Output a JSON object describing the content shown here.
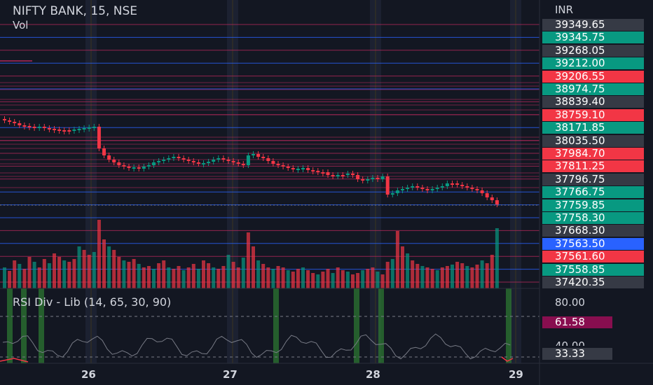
{
  "header": {
    "symbol": "NIFTY BANK, 15, NSE",
    "volume_label": "Vol",
    "rsi_label": "RSI Div - Lib (14, 65, 30, 90)"
  },
  "price_axis": {
    "currency": "INR",
    "levels": [
      {
        "value": "39349.65",
        "color": "#363a45"
      },
      {
        "value": "39345.75",
        "color": "#089981"
      },
      {
        "value": "39268.05",
        "color": "#363a45"
      },
      {
        "value": "39212.00",
        "color": "#089981"
      },
      {
        "value": "39206.55",
        "color": "#f23645"
      },
      {
        "value": "38974.75",
        "color": "#089981"
      },
      {
        "value": "38839.40",
        "color": "#363a45"
      },
      {
        "value": "38759.10",
        "color": "#f23645"
      },
      {
        "value": "38171.85",
        "color": "#089981"
      },
      {
        "value": "38035.50",
        "color": "#363a45"
      },
      {
        "value": "37984.70",
        "color": "#f23645"
      },
      {
        "value": "37811.25",
        "color": "#f23645"
      },
      {
        "value": "37796.75",
        "color": "#363a45"
      },
      {
        "value": "37766.75",
        "color": "#089981"
      },
      {
        "value": "37759.85",
        "color": "#089981"
      },
      {
        "value": "37758.30",
        "color": "#089981"
      },
      {
        "value": "37668.30",
        "color": "#363a45"
      },
      {
        "value": "37563.50",
        "color": "#2962ff"
      },
      {
        "value": "37561.60",
        "color": "#f23645"
      },
      {
        "value": "37558.85",
        "color": "#089981"
      },
      {
        "value": "37420.35",
        "color": "#363a45"
      }
    ]
  },
  "rsi_axis": {
    "upper": "80.00",
    "current": "61.58",
    "current_color": "#880e4f",
    "lower_partial": "40.00",
    "secondary": "33.33"
  },
  "time_axis": {
    "dates": [
      "26",
      "27",
      "28",
      "29"
    ]
  },
  "colors": {
    "up": "#089981",
    "down": "#f23645",
    "background": "#131722",
    "support": "#2962ff",
    "resistance": "#b2285a"
  }
}
